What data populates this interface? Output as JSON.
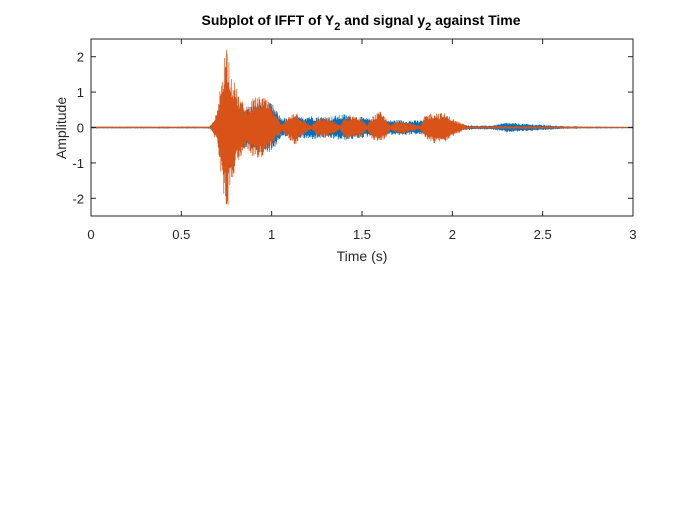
{
  "chart_data": {
    "type": "line",
    "title": {
      "part1": "Subplot of IFFT of Y",
      "sub1": "2",
      "part2": " and signal y",
      "sub2": "2",
      "part3": " against Time"
    },
    "xlabel": "Time (s)",
    "ylabel": "Amplitude",
    "xlim": [
      0,
      3
    ],
    "ylim": [
      -2.5,
      2.5
    ],
    "x_ticks": [
      0,
      0.5,
      1,
      1.5,
      2,
      2.5,
      3
    ],
    "x_tick_labels": [
      "0",
      "0.5",
      "1",
      "1.5",
      "2",
      "2.5",
      "3"
    ],
    "y_ticks": [
      2,
      1,
      0,
      -1,
      -2
    ],
    "y_tick_labels": [
      "2",
      "1",
      "0",
      "-1",
      "-2"
    ],
    "grid": false,
    "series": [
      {
        "color": "#0072BD",
        "envelope": [
          [
            0,
            0.01
          ],
          [
            0.65,
            0.01
          ],
          [
            0.68,
            0.15
          ],
          [
            0.72,
            0.3
          ],
          [
            0.78,
            0.5
          ],
          [
            0.85,
            0.6
          ],
          [
            0.9,
            0.65
          ],
          [
            1.0,
            0.7
          ],
          [
            1.05,
            0.3
          ],
          [
            1.1,
            0.25
          ],
          [
            1.2,
            0.35
          ],
          [
            1.3,
            0.3
          ],
          [
            1.4,
            0.38
          ],
          [
            1.5,
            0.3
          ],
          [
            1.6,
            0.2
          ],
          [
            1.7,
            0.22
          ],
          [
            1.78,
            0.2
          ],
          [
            1.85,
            0.22
          ],
          [
            1.95,
            0.3
          ],
          [
            2.05,
            0.08
          ],
          [
            2.15,
            0.05
          ],
          [
            2.22,
            0.06
          ],
          [
            2.26,
            0.1
          ],
          [
            2.3,
            0.14
          ],
          [
            2.36,
            0.12
          ],
          [
            2.42,
            0.1
          ],
          [
            2.5,
            0.08
          ],
          [
            2.58,
            0.05
          ],
          [
            2.65,
            0.03
          ],
          [
            2.7,
            0.01
          ],
          [
            3,
            0.01
          ]
        ]
      },
      {
        "color": "#D95319",
        "envelope": [
          [
            0,
            0.01
          ],
          [
            0.66,
            0.01
          ],
          [
            0.68,
            0.2
          ],
          [
            0.7,
            0.5
          ],
          [
            0.73,
            1.8
          ],
          [
            0.75,
            2.45
          ],
          [
            0.78,
            1.5
          ],
          [
            0.82,
            0.9
          ],
          [
            0.86,
            0.55
          ],
          [
            0.9,
            0.85
          ],
          [
            0.95,
            0.9
          ],
          [
            0.98,
            0.75
          ],
          [
            1.0,
            0.6
          ],
          [
            1.03,
            0.3
          ],
          [
            1.06,
            0.1
          ],
          [
            1.1,
            0.35
          ],
          [
            1.13,
            0.5
          ],
          [
            1.16,
            0.3
          ],
          [
            1.2,
            0.12
          ],
          [
            1.22,
            0.05
          ],
          [
            1.25,
            0.25
          ],
          [
            1.3,
            0.3
          ],
          [
            1.34,
            0.2
          ],
          [
            1.38,
            0.05
          ],
          [
            1.4,
            0.3
          ],
          [
            1.45,
            0.35
          ],
          [
            1.5,
            0.25
          ],
          [
            1.53,
            0.05
          ],
          [
            1.55,
            0.3
          ],
          [
            1.6,
            0.45
          ],
          [
            1.63,
            0.3
          ],
          [
            1.66,
            0.06
          ],
          [
            1.68,
            0.15
          ],
          [
            1.72,
            0.2
          ],
          [
            1.78,
            0.12
          ],
          [
            1.82,
            0.04
          ],
          [
            1.85,
            0.35
          ],
          [
            1.9,
            0.45
          ],
          [
            1.96,
            0.4
          ],
          [
            2.02,
            0.2
          ],
          [
            2.08,
            0.05
          ],
          [
            2.12,
            0.02
          ],
          [
            2.3,
            0.02
          ],
          [
            3,
            0.005
          ]
        ]
      }
    ]
  }
}
